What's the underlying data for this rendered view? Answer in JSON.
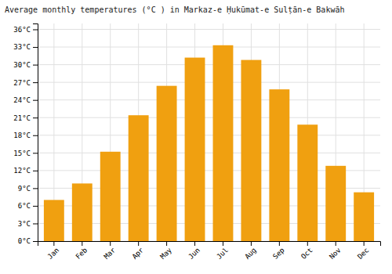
{
  "chart_data": {
    "type": "bar",
    "title": "Average monthly temperatures (°C ) in Markaz-e Ḥukūmat-e Sulṭān-e Bakwāh",
    "categories": [
      "Jan",
      "Feb",
      "Mar",
      "Apr",
      "May",
      "Jun",
      "Jul",
      "Aug",
      "Sep",
      "Oct",
      "Nov",
      "Dec"
    ],
    "values": [
      7.0,
      9.8,
      15.2,
      21.4,
      26.4,
      31.2,
      33.3,
      30.8,
      25.8,
      19.8,
      12.8,
      8.3
    ],
    "color": "#F0A010",
    "ylim": [
      0,
      37
    ],
    "yticks": [
      {
        "value": 0,
        "label": "0°C"
      },
      {
        "value": 3,
        "label": "3°C"
      },
      {
        "value": 6,
        "label": "6°C"
      },
      {
        "value": 9,
        "label": "9°C"
      },
      {
        "value": 12,
        "label": "12°C"
      },
      {
        "value": 15,
        "label": "15°C"
      },
      {
        "value": 18,
        "label": "18°C"
      },
      {
        "value": 21,
        "label": "21°C"
      },
      {
        "value": 24,
        "label": "24°C"
      },
      {
        "value": 27,
        "label": "27°C"
      },
      {
        "value": 30,
        "label": "30°C"
      },
      {
        "value": 33,
        "label": "33°C"
      },
      {
        "value": 36,
        "label": "36°C"
      }
    ],
    "grid": true
  }
}
